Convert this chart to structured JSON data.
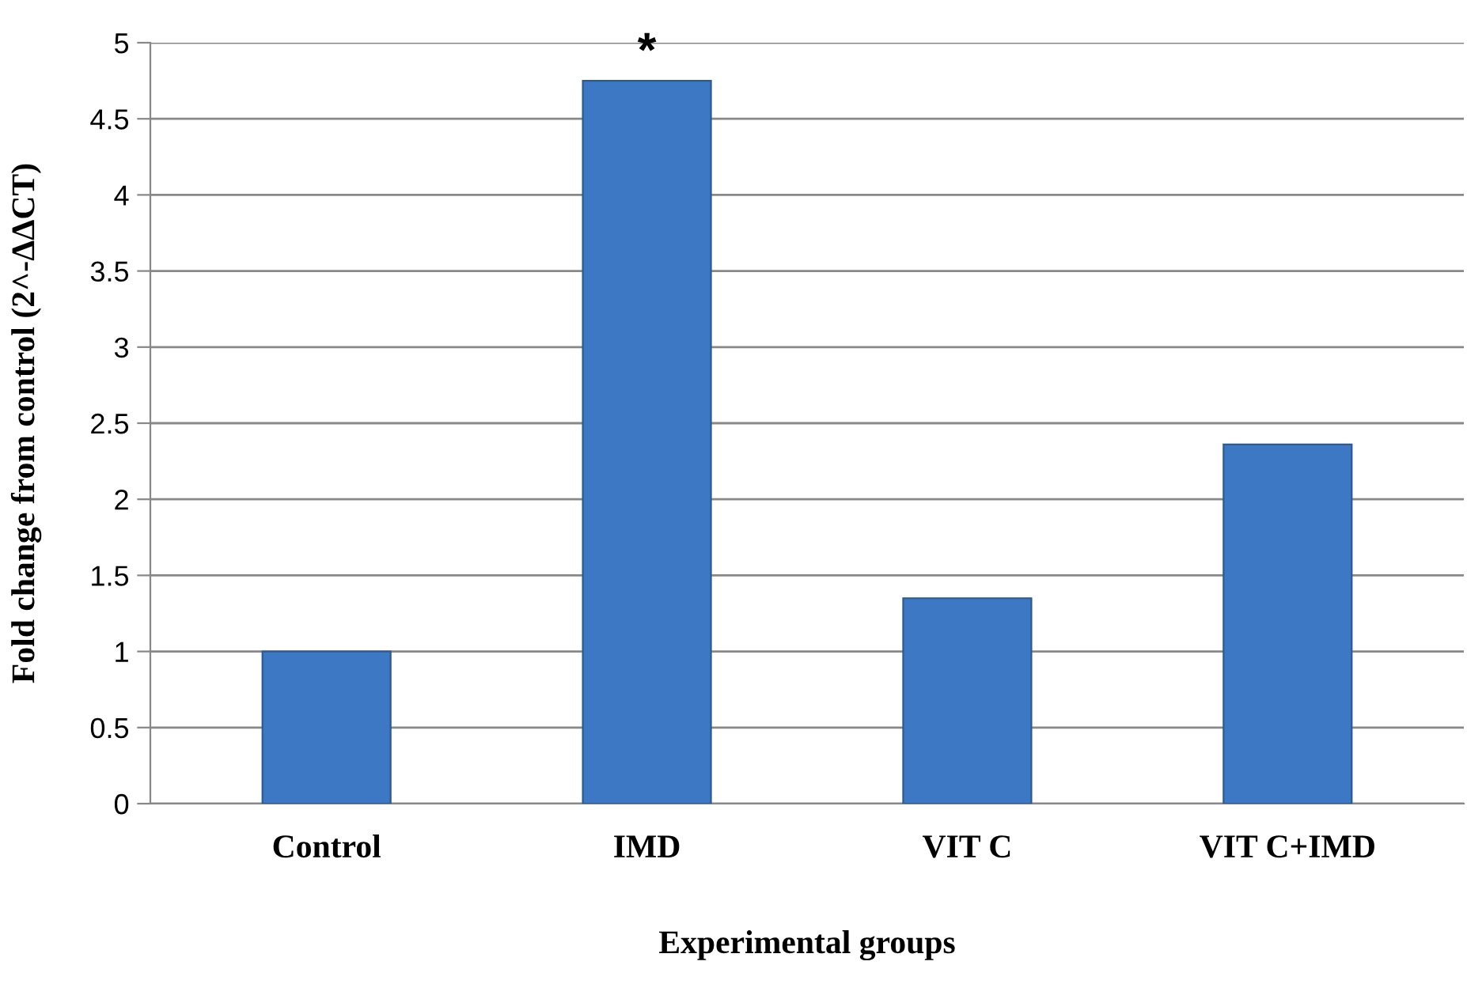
{
  "chart_data": {
    "type": "bar",
    "xlabel": "Experimental groups",
    "ylabel": "Fold change from control (2^-ΔΔCT)",
    "categories": [
      "Control",
      "IMD",
      "VIT C",
      "VIT C+IMD"
    ],
    "values": [
      1.0,
      4.75,
      1.35,
      2.36
    ],
    "color": "#3c78c3",
    "ylim": [
      0,
      5
    ],
    "yticks": [
      0,
      0.5,
      1,
      1.5,
      2,
      2.5,
      3,
      3.5,
      4,
      4.5,
      5
    ],
    "grid": "y",
    "annotations": [
      {
        "text": "*",
        "x": "IMD",
        "y": 4.75
      }
    ]
  }
}
